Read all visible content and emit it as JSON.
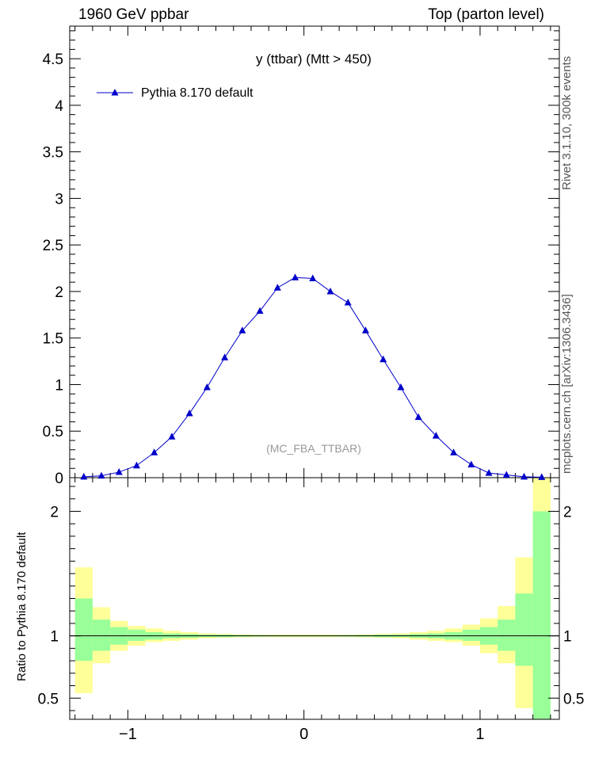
{
  "header": {
    "left": "1960 GeV ppbar",
    "right": "Top (parton level)"
  },
  "side_labels": {
    "rivet": "Rivet 3.1.10,  300k events",
    "mcplots": "mcplots.cern.ch [arXiv:1306.3436]"
  },
  "chart_data": {
    "type": "line",
    "title": "y (ttbar) (Mtt > 450)",
    "watermark": "(MC_FBA_TTBAR)",
    "xlim": [
      -1.33,
      1.45
    ],
    "main": {
      "ylim": [
        0,
        4.85
      ],
      "yticks": [
        0,
        0.5,
        1,
        1.5,
        2,
        2.5,
        3,
        3.5,
        4,
        4.5
      ],
      "ytick_labels": [
        "0",
        "0.5",
        "1",
        "1.5",
        "2",
        "2.5",
        "3",
        "3.5",
        "4",
        "4.5"
      ],
      "legend_position": "top-left"
    },
    "series": [
      {
        "name": "Pythia 8.170 default",
        "color": "#0000cc",
        "marker": "triangle",
        "x": [
          -1.25,
          -1.15,
          -1.05,
          -0.95,
          -0.85,
          -0.75,
          -0.65,
          -0.55,
          -0.45,
          -0.35,
          -0.25,
          -0.15,
          -0.05,
          0.05,
          0.15,
          0.25,
          0.35,
          0.45,
          0.55,
          0.65,
          0.75,
          0.85,
          0.95,
          1.05,
          1.15,
          1.25,
          1.35
        ],
        "y": [
          0.01,
          0.02,
          0.06,
          0.13,
          0.27,
          0.44,
          0.69,
          0.97,
          1.29,
          1.58,
          1.79,
          2.04,
          2.15,
          2.14,
          2.0,
          1.88,
          1.58,
          1.27,
          0.97,
          0.65,
          0.45,
          0.27,
          0.14,
          0.05,
          0.03,
          0.01,
          0.005
        ]
      }
    ],
    "ratio": {
      "ylabel": "Ratio to Pythia 8.170 default",
      "ylim": [
        0.33,
        2.27
      ],
      "yticks": [
        0.5,
        1,
        2
      ],
      "ytick_labels": [
        "0.5",
        "1",
        "2"
      ],
      "reference": 1,
      "bands": [
        {
          "x": [
            -1.3,
            -1.2
          ],
          "green": [
            0.8,
            1.3
          ],
          "yellow": [
            0.54,
            1.55
          ]
        },
        {
          "x": [
            -1.2,
            -1.1
          ],
          "green": [
            0.88,
            1.13
          ],
          "yellow": [
            0.78,
            1.23
          ]
        },
        {
          "x": [
            -1.1,
            -1.0
          ],
          "green": [
            0.93,
            1.07
          ],
          "yellow": [
            0.88,
            1.12
          ]
        },
        {
          "x": [
            -1.0,
            -0.9
          ],
          "green": [
            0.96,
            1.05
          ],
          "yellow": [
            0.92,
            1.08
          ]
        },
        {
          "x": [
            -0.9,
            -0.8
          ],
          "green": [
            0.97,
            1.03
          ],
          "yellow": [
            0.95,
            1.06
          ]
        },
        {
          "x": [
            -0.8,
            -0.7
          ],
          "green": [
            0.98,
            1.02
          ],
          "yellow": [
            0.96,
            1.04
          ]
        },
        {
          "x": [
            -0.7,
            -0.6
          ],
          "green": [
            0.985,
            1.015
          ],
          "yellow": [
            0.97,
            1.03
          ]
        },
        {
          "x": [
            -0.6,
            -0.5
          ],
          "green": [
            0.99,
            1.01
          ],
          "yellow": [
            0.98,
            1.02
          ]
        },
        {
          "x": [
            -0.5,
            -0.4
          ],
          "green": [
            0.99,
            1.01
          ],
          "yellow": [
            0.985,
            1.015
          ]
        },
        {
          "x": [
            -0.4,
            -0.3
          ],
          "green": [
            0.993,
            1.007
          ],
          "yellow": [
            0.988,
            1.012
          ]
        },
        {
          "x": [
            -0.3,
            -0.2
          ],
          "green": [
            0.994,
            1.006
          ],
          "yellow": [
            0.99,
            1.01
          ]
        },
        {
          "x": [
            -0.2,
            -0.1
          ],
          "green": [
            0.995,
            1.005
          ],
          "yellow": [
            0.99,
            1.01
          ]
        },
        {
          "x": [
            -0.1,
            0.0
          ],
          "green": [
            0.995,
            1.005
          ],
          "yellow": [
            0.99,
            1.01
          ]
        },
        {
          "x": [
            0.0,
            0.1
          ],
          "green": [
            0.995,
            1.005
          ],
          "yellow": [
            0.99,
            1.01
          ]
        },
        {
          "x": [
            0.1,
            0.2
          ],
          "green": [
            0.995,
            1.005
          ],
          "yellow": [
            0.99,
            1.01
          ]
        },
        {
          "x": [
            0.2,
            0.3
          ],
          "green": [
            0.994,
            1.006
          ],
          "yellow": [
            0.99,
            1.01
          ]
        },
        {
          "x": [
            0.3,
            0.4
          ],
          "green": [
            0.993,
            1.007
          ],
          "yellow": [
            0.988,
            1.012
          ]
        },
        {
          "x": [
            0.4,
            0.5
          ],
          "green": [
            0.99,
            1.01
          ],
          "yellow": [
            0.985,
            1.015
          ]
        },
        {
          "x": [
            0.5,
            0.6
          ],
          "green": [
            0.99,
            1.01
          ],
          "yellow": [
            0.98,
            1.02
          ]
        },
        {
          "x": [
            0.6,
            0.7
          ],
          "green": [
            0.985,
            1.015
          ],
          "yellow": [
            0.97,
            1.03
          ]
        },
        {
          "x": [
            0.7,
            0.8
          ],
          "green": [
            0.98,
            1.02
          ],
          "yellow": [
            0.96,
            1.04
          ]
        },
        {
          "x": [
            0.8,
            0.9
          ],
          "green": [
            0.97,
            1.03
          ],
          "yellow": [
            0.95,
            1.06
          ]
        },
        {
          "x": [
            0.9,
            1.0
          ],
          "green": [
            0.96,
            1.05
          ],
          "yellow": [
            0.92,
            1.09
          ]
        },
        {
          "x": [
            1.0,
            1.1
          ],
          "green": [
            0.93,
            1.07
          ],
          "yellow": [
            0.86,
            1.14
          ]
        },
        {
          "x": [
            1.1,
            1.2
          ],
          "green": [
            0.88,
            1.13
          ],
          "yellow": [
            0.78,
            1.24
          ]
        },
        {
          "x": [
            1.2,
            1.3
          ],
          "green": [
            0.76,
            1.34
          ],
          "yellow": [
            0.42,
            1.63
          ]
        },
        {
          "x": [
            1.3,
            1.4
          ],
          "green": [
            0.33,
            2.0
          ],
          "yellow": [
            0.33,
            2.27
          ]
        }
      ]
    },
    "xticks": [
      -1,
      0,
      1
    ],
    "xtick_labels": [
      "−1",
      "0",
      "1"
    ]
  }
}
